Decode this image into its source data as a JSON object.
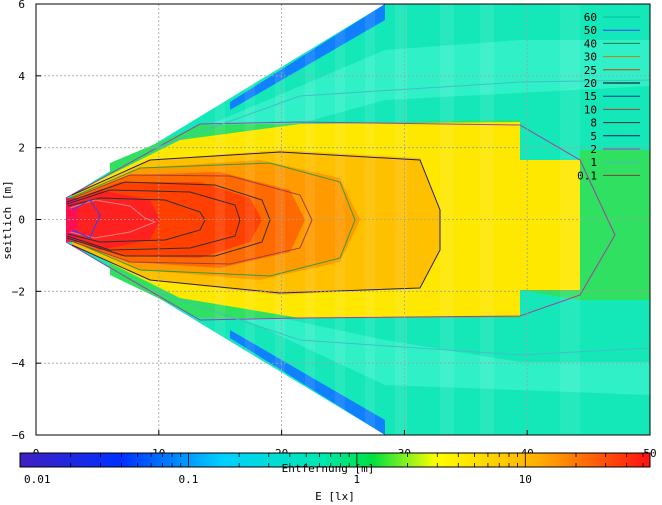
{
  "chart_data": {
    "type": "heatmap",
    "xlabel": "Entfernung [m]",
    "ylabel": "seitlich [m]",
    "xlim": [
      0,
      50
    ],
    "ylim": [
      -6,
      6
    ],
    "x_ticks": [
      "0",
      "10",
      "20",
      "30",
      "40",
      "50"
    ],
    "y_ticks": [
      "6",
      "4",
      "2",
      "0",
      "−2",
      "−4",
      "−6"
    ],
    "grid": true,
    "legend_position": "top-right",
    "contour_levels": [
      {
        "label": "60",
        "color": "#00c0a0"
      },
      {
        "label": "50",
        "color": "#3040ff"
      },
      {
        "label": "40",
        "color": "#008040"
      },
      {
        "label": "30",
        "color": "#c08000"
      },
      {
        "label": "25",
        "color": "#c04000"
      },
      {
        "label": "20",
        "color": "#000000"
      },
      {
        "label": "15",
        "color": "#004080"
      },
      {
        "label": "10",
        "color": "#a04040"
      },
      {
        "label": "8",
        "color": "#303030"
      },
      {
        "label": "5",
        "color": "#202060"
      },
      {
        "label": "2",
        "color": "#a040a0"
      },
      {
        "label": "1",
        "color": "#40c0c0"
      },
      {
        "label": "0.1",
        "color": "#804040"
      }
    ],
    "colorbar": {
      "label": "E [lx]",
      "scale": "log",
      "range": [
        0.01,
        55
      ],
      "ticks": [
        "0.01",
        "0.1",
        "1",
        "10"
      ],
      "tick_values": [
        0.01,
        0.1,
        1,
        10
      ]
    }
  }
}
